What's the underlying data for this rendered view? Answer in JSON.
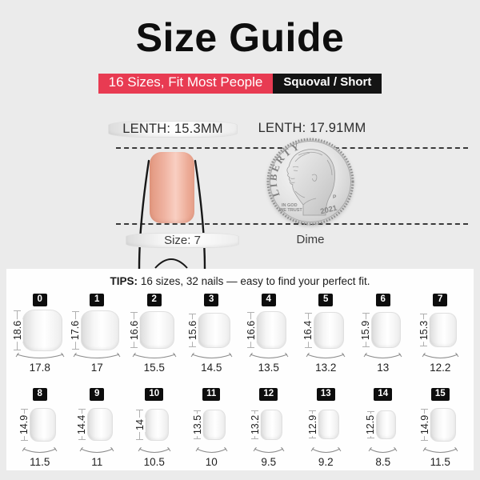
{
  "page": {
    "background": "#ebebeb",
    "panel_bg": "#fefefe",
    "accent_red": "#e83b52",
    "accent_black": "#141414"
  },
  "header": {
    "title": "Size Guide",
    "banner_left": "16 Sizes, Fit Most People",
    "banner_right": "Squoval / Short"
  },
  "comparison": {
    "left_length_label": "LENTH: 15.3MM",
    "right_length_label": "LENTH: 17.91MM",
    "left_caption": "Size: 7",
    "right_caption": "Dime",
    "coin_text": {
      "liberty": "LIBERTY",
      "motto_line1": "IN GOD",
      "motto_line2": "WE TRUST",
      "mint_mark": "P",
      "year": "2021"
    }
  },
  "tips": {
    "label": "TIPS:",
    "text": " 16 sizes, 32 nails — easy to find your perfect fit."
  },
  "size_chart": {
    "sizes": [
      {
        "size": "0",
        "length_mm": "18.6",
        "width_mm": "17.8"
      },
      {
        "size": "1",
        "length_mm": "17.6",
        "width_mm": "17"
      },
      {
        "size": "2",
        "length_mm": "16.6",
        "width_mm": "15.5"
      },
      {
        "size": "3",
        "length_mm": "15.6",
        "width_mm": "14.5"
      },
      {
        "size": "4",
        "length_mm": "16.6",
        "width_mm": "13.5"
      },
      {
        "size": "5",
        "length_mm": "16.4",
        "width_mm": "13.2"
      },
      {
        "size": "6",
        "length_mm": "15.9",
        "width_mm": "13"
      },
      {
        "size": "7",
        "length_mm": "15.3",
        "width_mm": "12.2"
      },
      {
        "size": "8",
        "length_mm": "14.9",
        "width_mm": "11.5"
      },
      {
        "size": "9",
        "length_mm": "14.4",
        "width_mm": "11"
      },
      {
        "size": "10",
        "length_mm": "14",
        "width_mm": "10.5"
      },
      {
        "size": "11",
        "length_mm": "13.5",
        "width_mm": "10"
      },
      {
        "size": "12",
        "length_mm": "13.2",
        "width_mm": "9.5"
      },
      {
        "size": "13",
        "length_mm": "12.9",
        "width_mm": "9.2"
      },
      {
        "size": "14",
        "length_mm": "12.5",
        "width_mm": "8.5"
      },
      {
        "size": "15",
        "length_mm": "14.9",
        "width_mm": "11.5"
      }
    ]
  }
}
